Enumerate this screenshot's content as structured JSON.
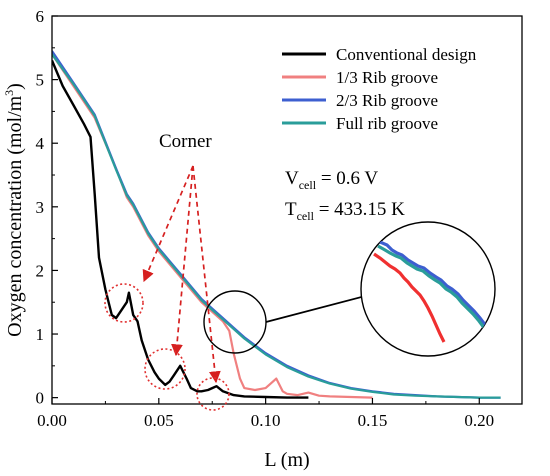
{
  "chart_data": {
    "type": "line",
    "xlabel": "L (m)",
    "ylabel": "Oxygen concentration (mol/m",
    "ylabel_sup": "3",
    "ylabel_close": ")",
    "xlim": [
      0,
      0.22
    ],
    "ylim": [
      -0.1,
      6
    ],
    "xticks": [
      0.0,
      0.05,
      0.1,
      0.15,
      0.2
    ],
    "xtick_labels": [
      "0.00",
      "0.05",
      "0.10",
      "0.15",
      "0.20"
    ],
    "yticks": [
      0,
      1,
      2,
      3,
      4,
      5,
      6
    ],
    "ytick_labels": [
      "0",
      "1",
      "2",
      "3",
      "4",
      "5",
      "6"
    ],
    "legend_position": "top-right",
    "series": [
      {
        "name": "Conventional design",
        "color": "#000000",
        "x": [
          0.0,
          0.005,
          0.01,
          0.015,
          0.018,
          0.02,
          0.022,
          0.025,
          0.028,
          0.03,
          0.033,
          0.035,
          0.036,
          0.038,
          0.04,
          0.042,
          0.045,
          0.048,
          0.05,
          0.053,
          0.055,
          0.057,
          0.06,
          0.063,
          0.065,
          0.068,
          0.07,
          0.073,
          0.075,
          0.077,
          0.08,
          0.085,
          0.09,
          0.1,
          0.11,
          0.12
        ],
        "y": [
          5.3,
          4.9,
          4.6,
          4.3,
          4.1,
          3.2,
          2.2,
          1.7,
          1.3,
          1.25,
          1.4,
          1.5,
          1.65,
          1.3,
          1.2,
          0.9,
          0.6,
          0.4,
          0.3,
          0.2,
          0.25,
          0.35,
          0.5,
          0.3,
          0.15,
          0.1,
          0.1,
          0.12,
          0.15,
          0.18,
          0.1,
          0.04,
          0.02,
          0.01,
          0.0,
          0.0
        ]
      },
      {
        "name": "1/3 Rib groove",
        "color": "#f08080",
        "x": [
          0.0,
          0.01,
          0.02,
          0.03,
          0.035,
          0.038,
          0.045,
          0.05,
          0.055,
          0.06,
          0.065,
          0.07,
          0.075,
          0.08,
          0.083,
          0.085,
          0.088,
          0.09,
          0.095,
          0.1,
          0.105,
          0.108,
          0.11,
          0.115,
          0.12,
          0.125,
          0.13,
          0.14,
          0.15
        ],
        "y": [
          5.4,
          4.9,
          4.4,
          3.6,
          3.15,
          3.0,
          2.55,
          2.3,
          2.1,
          1.9,
          1.7,
          1.5,
          1.35,
          1.2,
          1.05,
          0.7,
          0.3,
          0.15,
          0.12,
          0.15,
          0.3,
          0.1,
          0.06,
          0.04,
          0.08,
          0.03,
          0.02,
          0.01,
          0.0
        ]
      },
      {
        "name": "2/3 Rib groove",
        "color": "#3d5fd0",
        "x": [
          0.0,
          0.01,
          0.02,
          0.03,
          0.035,
          0.038,
          0.045,
          0.05,
          0.055,
          0.06,
          0.065,
          0.07,
          0.075,
          0.08,
          0.085,
          0.09,
          0.1,
          0.11,
          0.12,
          0.13,
          0.14,
          0.15,
          0.16,
          0.17,
          0.18,
          0.19,
          0.2,
          0.21
        ],
        "y": [
          5.45,
          4.95,
          4.45,
          3.6,
          3.2,
          3.05,
          2.6,
          2.35,
          2.15,
          1.95,
          1.75,
          1.55,
          1.4,
          1.25,
          1.1,
          0.95,
          0.7,
          0.5,
          0.35,
          0.23,
          0.15,
          0.1,
          0.06,
          0.04,
          0.02,
          0.01,
          0.0,
          0.0
        ]
      },
      {
        "name": "Full rib groove",
        "color": "#2a9d9a",
        "x": [
          0.0,
          0.01,
          0.02,
          0.03,
          0.035,
          0.038,
          0.045,
          0.05,
          0.055,
          0.06,
          0.065,
          0.07,
          0.075,
          0.08,
          0.085,
          0.09,
          0.1,
          0.11,
          0.12,
          0.13,
          0.14,
          0.15,
          0.16,
          0.17,
          0.18,
          0.19,
          0.2,
          0.21
        ],
        "y": [
          5.4,
          4.93,
          4.43,
          3.58,
          3.18,
          3.03,
          2.58,
          2.33,
          2.13,
          1.93,
          1.73,
          1.53,
          1.38,
          1.23,
          1.08,
          0.93,
          0.68,
          0.48,
          0.33,
          0.22,
          0.14,
          0.09,
          0.05,
          0.03,
          0.02,
          0.01,
          0.0,
          0.0
        ]
      }
    ],
    "annotations": {
      "corner_label": "Corner",
      "vcell_main": "V",
      "vcell_sub": "cell",
      "vcell_value": " = 0.6 V",
      "tcell_main": "T",
      "tcell_sub": "cell",
      "tcell_value": " = 433.15 K"
    }
  }
}
